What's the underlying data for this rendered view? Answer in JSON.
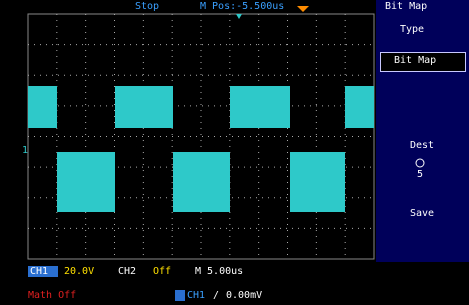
{
  "status_bar": {
    "state": "Stop",
    "position": "M Pos:-5.500us"
  },
  "menu": {
    "title": "Bit Map",
    "type_label": "Type",
    "type_value": "Bit Map",
    "dest_label": "Dest",
    "dest_value": "5",
    "save": "Save"
  },
  "bottom_bar": {
    "ch1": "CH1",
    "ch1_scale": "20.0V",
    "ch2": "CH2",
    "ch2_state": "Off",
    "timebase": "M 5.00us",
    "math": "Math Off",
    "trigger_source": "CH1",
    "trigger_slope": "/",
    "trigger_level": "0.00mV"
  }
}
